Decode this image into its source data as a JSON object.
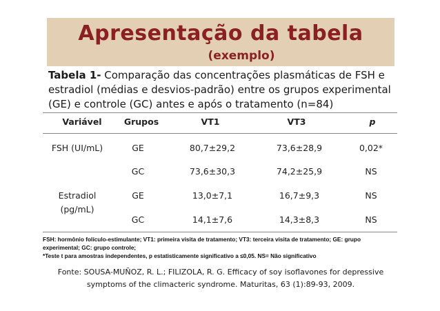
{
  "banner": {
    "title": "Apresentação da tabela",
    "subtitle": "(exemplo)"
  },
  "caption": {
    "label": "Tabela 1-",
    "text": " Comparação das concentrações plasmáticas de FSH e estradiol (médias e desvios-padrão) entre os grupos experimental (GE) e controle (GC) antes e após o tratamento (n=84)"
  },
  "table": {
    "headers": [
      "Variável",
      "Grupos",
      "VT1",
      "VT3",
      "p"
    ],
    "rows": [
      {
        "variable": "FSH (UI/mL)",
        "group": "GE",
        "vt1": "80,7±29,2",
        "vt3": "73,6±28,9",
        "p": "0,02*"
      },
      {
        "variable": "",
        "group": "GC",
        "vt1": "73,6±30,3",
        "vt3": "74,2±25,9",
        "p": "NS"
      },
      {
        "variable": "Estradiol",
        "group": "GE",
        "vt1": "13,0±7,1",
        "vt3": "16,7±9,3",
        "p": "NS"
      },
      {
        "variable": "(pg/mL)",
        "group": "GC",
        "vt1": "14,1±7,6",
        "vt3": "14,3±8,3",
        "p": "NS"
      }
    ]
  },
  "notes": {
    "line1": "FSH: hormônio folículo-estimulante; VT1: primeira visita de tratamento; VT3: terceira visita de tratamento; GE: grupo",
    "line2": "experimental; GC: grupo controle;",
    "line3": "*Teste t para amostras independentes, p estatisticamente significativo a ≤0,05.  NS= Não significativo"
  },
  "source": {
    "line1": "Fonte: SOUSA-MUÑOZ, R. L.; FILIZOLA, R. G. Efficacy of soy isoflavones for depressive",
    "line2": "symptoms of the climacteric syndrome. Maturitas, 63 (1):89-93, 2009."
  }
}
